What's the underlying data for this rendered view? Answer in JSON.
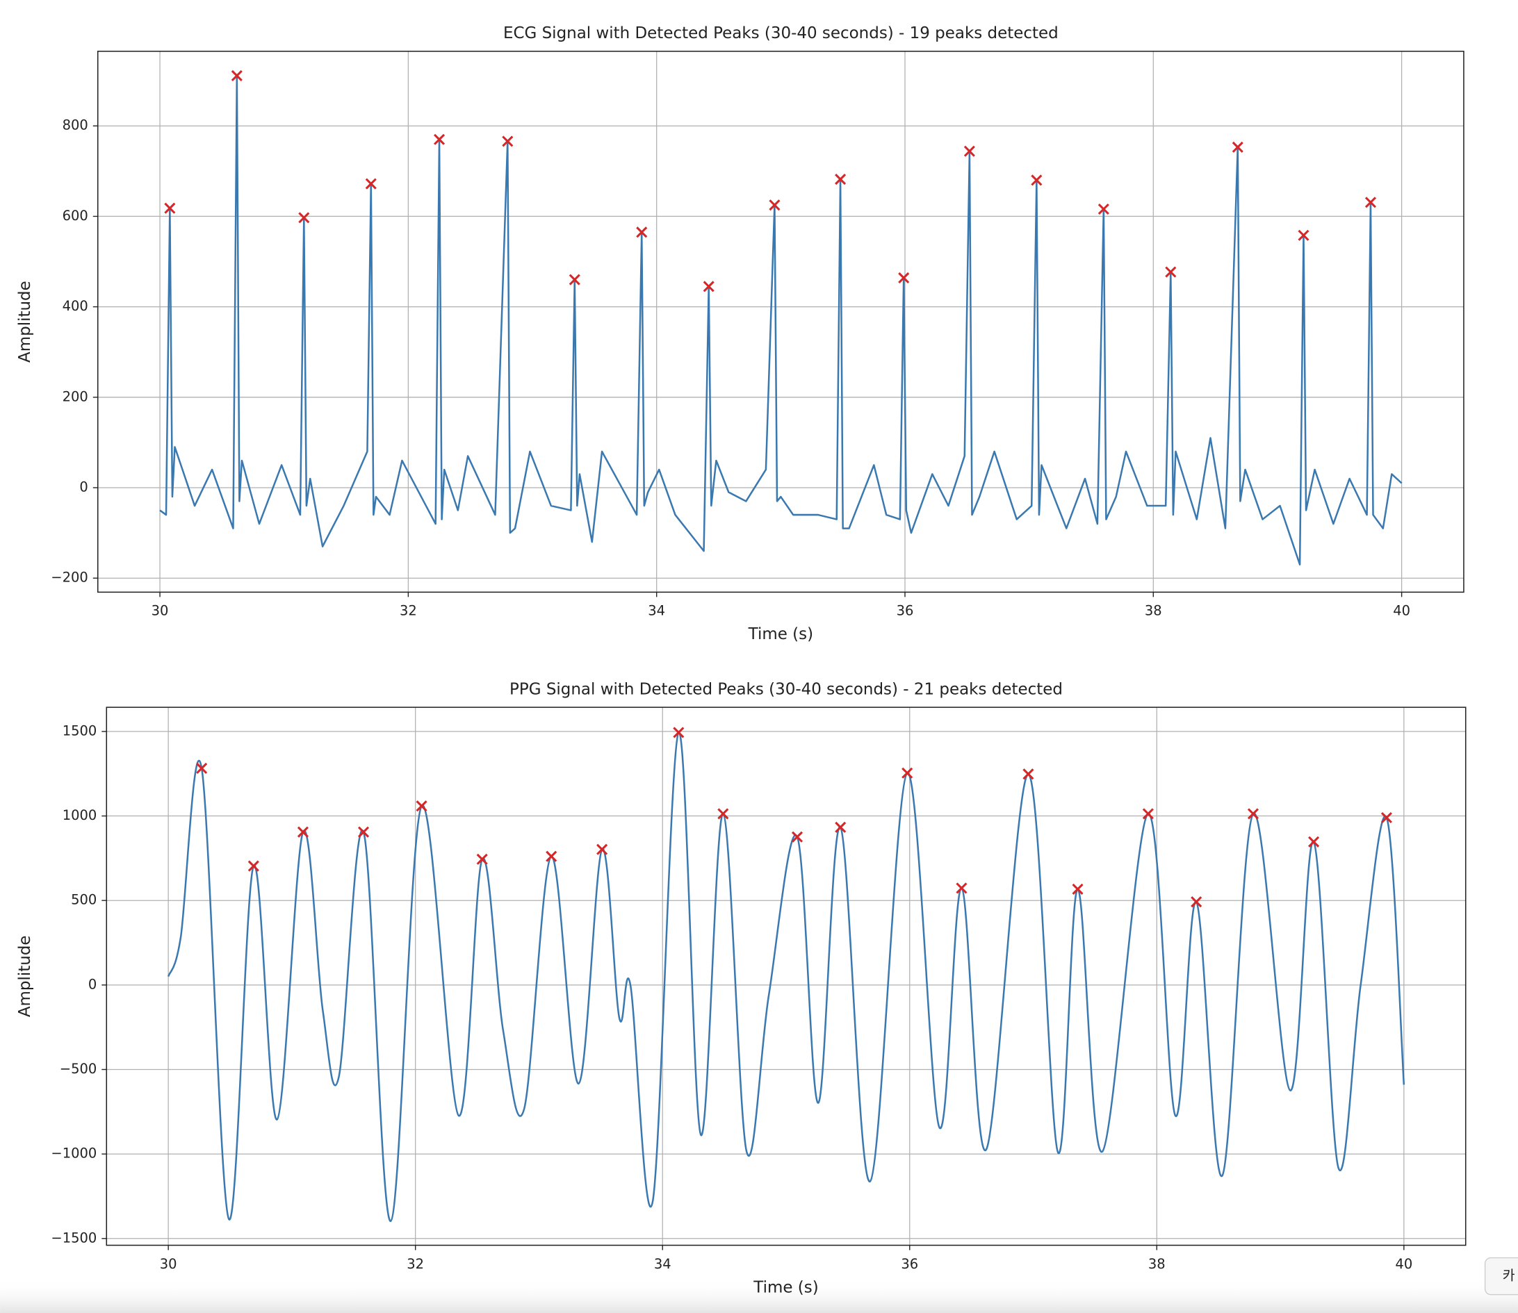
{
  "chart_data": [
    {
      "type": "line",
      "title": "ECG Signal with Detected Peaks (30-40 seconds) - 19 peaks detected",
      "x_label": "Time (s)",
      "y_label": "Amplitude",
      "xlim": [
        29.5,
        40.5
      ],
      "ylim": [
        -231,
        965
      ],
      "xticks": [
        30,
        32,
        34,
        36,
        38,
        40
      ],
      "yticks": [
        {
          "value": -200,
          "label": "−200"
        },
        0,
        200,
        400,
        600,
        800
      ],
      "grid": true,
      "series": [
        {
          "name": "ECG",
          "color": "#3a78b0",
          "marker": "none",
          "x": [
            30.0,
            30.05,
            30.08,
            30.1,
            30.12,
            30.28,
            30.42,
            30.59,
            30.62,
            30.64,
            30.66,
            30.8,
            30.98,
            31.13,
            31.16,
            31.18,
            31.21,
            31.31,
            31.48,
            31.67,
            31.7,
            31.72,
            31.74,
            31.85,
            31.95,
            32.22,
            32.25,
            32.27,
            32.29,
            32.4,
            32.48,
            32.7,
            32.8,
            32.82,
            32.86,
            32.98,
            33.15,
            33.31,
            33.34,
            33.36,
            33.38,
            33.48,
            33.56,
            33.84,
            33.88,
            33.9,
            33.93,
            34.02,
            34.15,
            34.38,
            34.42,
            34.44,
            34.48,
            34.58,
            34.72,
            34.88,
            34.95,
            34.97,
            35.0,
            35.1,
            35.3,
            35.45,
            35.48,
            35.5,
            35.55,
            35.75,
            35.85,
            35.96,
            35.99,
            36.01,
            36.05,
            36.22,
            36.35,
            36.48,
            36.52,
            36.54,
            36.6,
            36.72,
            36.9,
            37.02,
            37.06,
            37.08,
            37.1,
            37.3,
            37.45,
            37.55,
            37.6,
            37.62,
            37.7,
            37.78,
            37.95,
            38.1,
            38.14,
            38.16,
            38.18,
            38.35,
            38.46,
            38.58,
            38.68,
            38.7,
            38.74,
            38.88,
            39.02,
            39.18,
            39.21,
            39.23,
            39.3,
            39.45,
            39.58,
            39.72,
            39.75,
            39.77,
            39.85,
            39.92,
            40.0
          ],
          "values": [
            -50,
            -60,
            618,
            -20,
            90,
            -40,
            40,
            -90,
            911,
            -30,
            60,
            -80,
            50,
            -60,
            597,
            -40,
            20,
            -130,
            -40,
            80,
            672,
            -60,
            -20,
            -60,
            60,
            -80,
            770,
            -70,
            40,
            -50,
            70,
            -60,
            766,
            -100,
            -90,
            80,
            -40,
            -50,
            460,
            -40,
            30,
            -120,
            80,
            -60,
            565,
            -40,
            -10,
            40,
            -60,
            -140,
            445,
            -40,
            60,
            -10,
            -30,
            40,
            625,
            -30,
            -20,
            -60,
            -60,
            -70,
            682,
            -90,
            -90,
            50,
            -60,
            -70,
            464,
            -50,
            -100,
            30,
            -40,
            70,
            744,
            -60,
            -20,
            80,
            -70,
            -40,
            680,
            -60,
            50,
            -90,
            20,
            -80,
            616,
            -70,
            -20,
            80,
            -40,
            -40,
            477,
            -60,
            80,
            -70,
            110,
            -90,
            753,
            -30,
            40,
            -70,
            -40,
            -170,
            558,
            -50,
            40,
            -80,
            20,
            -60,
            631,
            -60,
            -90,
            30,
            10
          ]
        },
        {
          "name": "Peaks",
          "color": "#d62728",
          "marker": "x",
          "x": [
            30.08,
            30.62,
            31.16,
            31.7,
            32.25,
            32.8,
            33.34,
            33.88,
            34.42,
            34.95,
            35.48,
            35.99,
            36.52,
            37.06,
            37.6,
            38.14,
            38.68,
            39.21,
            39.75
          ],
          "values": [
            618,
            911,
            597,
            672,
            770,
            766,
            460,
            565,
            445,
            625,
            682,
            464,
            744,
            680,
            616,
            477,
            753,
            558,
            631
          ]
        }
      ]
    },
    {
      "type": "line",
      "title": "PPG Signal with Detected Peaks (30-40 seconds) - 21 peaks detected",
      "x_label": "Time (s)",
      "y_label": "Amplitude",
      "xlim": [
        29.5,
        40.5
      ],
      "ylim": [
        -1540,
        1643
      ],
      "xticks": [
        30,
        32,
        34,
        36,
        38,
        40
      ],
      "yticks": [
        {
          "value": -1500,
          "label": "−1500"
        },
        {
          "value": -1000,
          "label": "−1000"
        },
        {
          "value": -500,
          "label": "−500"
        },
        0,
        500,
        1000,
        1500
      ],
      "grid": true,
      "series": [
        {
          "name": "PPG",
          "color": "#3a78b0",
          "marker": "none",
          "x": [
            30.0,
            30.1,
            30.27,
            30.49,
            30.69,
            30.88,
            31.09,
            31.25,
            31.38,
            31.58,
            31.8,
            32.05,
            32.35,
            32.54,
            32.71,
            32.88,
            33.1,
            33.32,
            33.51,
            33.65,
            33.74,
            33.92,
            34.13,
            34.31,
            34.49,
            34.68,
            34.86,
            35.09,
            35.26,
            35.44,
            35.68,
            35.98,
            36.24,
            36.42,
            36.62,
            36.96,
            37.2,
            37.36,
            37.56,
            37.93,
            38.15,
            38.32,
            38.53,
            38.78,
            39.08,
            39.27,
            39.47,
            39.65,
            39.86,
            40.0
          ],
          "values": [
            50,
            280,
            1282,
            -1385,
            704,
            -796,
            905,
            -150,
            -544,
            905,
            -1397,
            1059,
            -773,
            744,
            -270,
            -733,
            761,
            -584,
            802,
            -195,
            0,
            -1282,
            1494,
            -887,
            1013,
            -985,
            -60,
            876,
            -698,
            933,
            -1162,
            1254,
            -842,
            573,
            -973,
            1248,
            -990,
            567,
            -985,
            1013,
            -773,
            492,
            -1128,
            1013,
            -624,
            847,
            -1082,
            0,
            990,
            -590
          ]
        },
        {
          "name": "Peaks",
          "color": "#d62728",
          "marker": "x",
          "x": [
            30.27,
            30.69,
            31.09,
            31.58,
            32.05,
            32.54,
            33.1,
            33.51,
            34.13,
            34.49,
            35.09,
            35.44,
            35.98,
            36.42,
            36.96,
            37.36,
            37.93,
            38.32,
            38.78,
            39.27,
            39.86
          ],
          "values": [
            1282,
            704,
            905,
            905,
            1059,
            744,
            761,
            802,
            1494,
            1013,
            876,
            933,
            1254,
            573,
            1248,
            567,
            1013,
            492,
            1013,
            847,
            990
          ]
        }
      ]
    }
  ],
  "corner_button": "카"
}
